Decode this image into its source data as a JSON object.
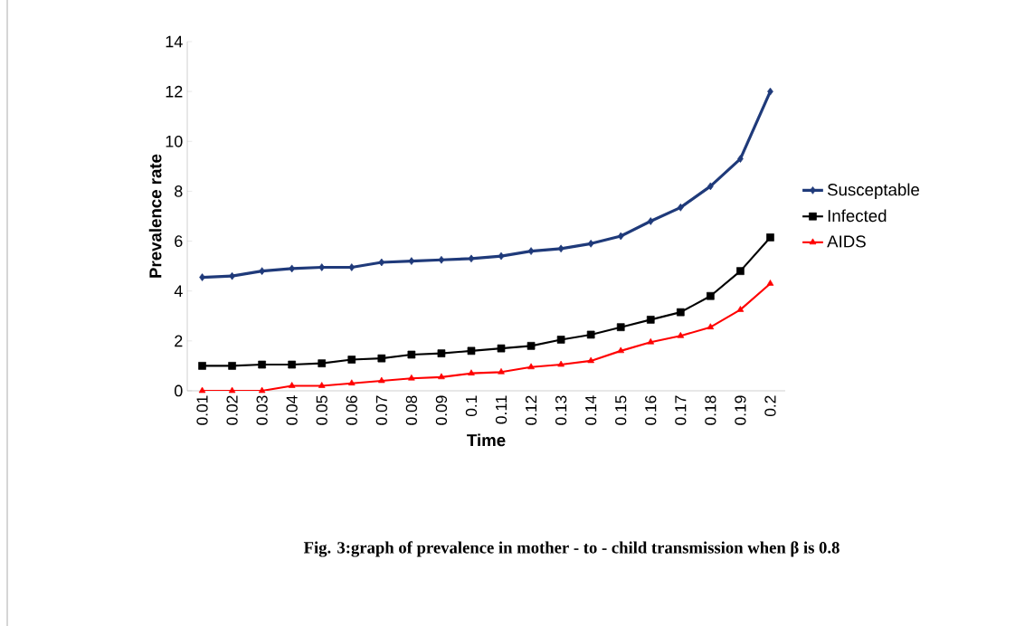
{
  "chart_data": {
    "type": "line",
    "xlabel": "Time",
    "ylabel": "Prevalence rate",
    "categories": [
      "0.01",
      "0.02",
      "0.03",
      "0.04",
      "0.05",
      "0.06",
      "0.07",
      "0.08",
      "0.09",
      "0.1",
      "0.11",
      "0.12",
      "0.13",
      "0.14",
      "0.15",
      "0.16",
      "0.17",
      "0.18",
      "0.19",
      "0.2"
    ],
    "series": [
      {
        "name": "Susceptable",
        "color": "#1f3a7a",
        "marker": "diamond",
        "values": [
          4.55,
          4.6,
          4.8,
          4.9,
          4.95,
          4.95,
          5.15,
          5.2,
          5.25,
          5.3,
          5.4,
          5.6,
          5.7,
          5.9,
          6.2,
          6.8,
          7.35,
          8.2,
          9.3,
          12.0
        ]
      },
      {
        "name": "Infected",
        "color": "#000000",
        "marker": "square",
        "values": [
          1.0,
          1.0,
          1.05,
          1.05,
          1.1,
          1.25,
          1.3,
          1.45,
          1.5,
          1.6,
          1.7,
          1.8,
          2.05,
          2.25,
          2.55,
          2.85,
          3.15,
          3.8,
          4.8,
          6.15
        ]
      },
      {
        "name": "AIDS",
        "color": "#ff0000",
        "marker": "triangle",
        "values": [
          0,
          0,
          0,
          0.2,
          0.2,
          0.3,
          0.4,
          0.5,
          0.55,
          0.7,
          0.75,
          0.95,
          1.05,
          1.2,
          1.6,
          1.95,
          2.2,
          2.55,
          3.25,
          4.3
        ]
      }
    ],
    "ylim": [
      0,
      14
    ],
    "yticks": [
      0,
      2,
      4,
      6,
      8,
      10,
      12,
      14
    ],
    "legend": "right",
    "grid": false,
    "annotations": [
      "Fig. 3:graph of prevalence in mother - to - child transmission when β is 0.8"
    ]
  }
}
